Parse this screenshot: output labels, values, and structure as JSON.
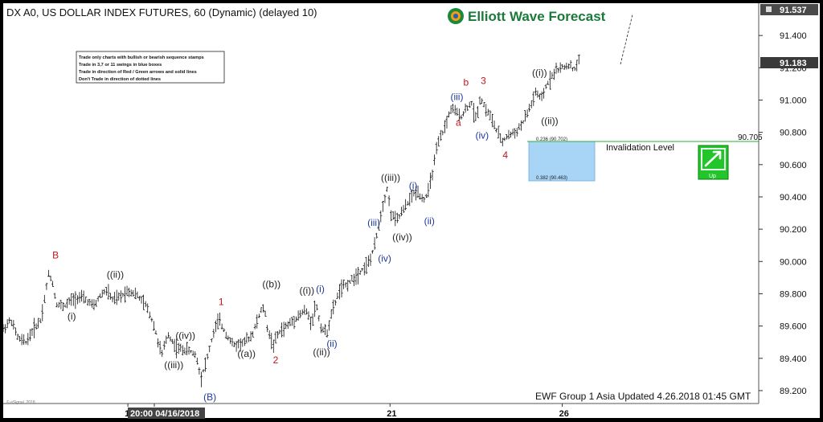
{
  "header": {
    "symbol_title": "DX A0, US DOLLAR INDEX FUTURES, 60 (Dynamic) (delayed 10)",
    "logo_text": "Elliott Wave Forecast"
  },
  "rules_box": {
    "lines": [
      "Trade only charts with bullish or bearish sequence stamps",
      "Trade in 3,7 or 11 swings in blue boxes",
      "Trade in direction of Red / Green arrows and solid lines",
      "Don't Trade in direction of dotted lines"
    ]
  },
  "footer": {
    "update_text": "EWF Group 1 Asia Updated 4.26.2018 01:45 GMT",
    "copyright": "© eSignal, 2018"
  },
  "invalidation": {
    "label": "Invalidation Level",
    "price_label": "90.705"
  },
  "blue_box": {
    "top_label": "0.236 (90.702)",
    "bottom_label": "0.382 (90.463)",
    "color": "#a8d4f5"
  },
  "up_stamp": {
    "label": "Up",
    "color": "#22c52a"
  },
  "price_badges": {
    "top": "91.537",
    "current": "91.183"
  },
  "chart_data": {
    "type": "ohlc",
    "yticks": [
      "91.400",
      "91.200",
      "91.000",
      "90.800",
      "90.600",
      "90.400",
      "90.200",
      "90.000",
      "89.800",
      "89.600",
      "89.400",
      "89.200"
    ],
    "ylim": [
      89.12,
      91.6
    ],
    "xticks": [
      "1",
      "20:00 04/16/2018",
      "21",
      "26"
    ],
    "xticks_pos": [
      0.165,
      0.2,
      0.512,
      0.74
    ],
    "wave_labels": [
      {
        "text": "B",
        "color": "#c0151b",
        "x": 0.065,
        "y": 90.02
      },
      {
        "text": "((ii))",
        "color": "#222222",
        "x": 0.137,
        "y": 89.9
      },
      {
        "text": "(i)",
        "color": "#222222",
        "x": 0.085,
        "y": 89.64
      },
      {
        "text": "((iv))",
        "color": "#222222",
        "x": 0.228,
        "y": 89.52
      },
      {
        "text": "((iii))",
        "color": "#222222",
        "x": 0.213,
        "y": 89.34
      },
      {
        "text": "(B)",
        "color": "#1d3a9c",
        "x": 0.265,
        "y": 89.14
      },
      {
        "text": "1",
        "color": "#c0151b",
        "x": 0.285,
        "y": 89.73
      },
      {
        "text": "((a))",
        "color": "#222222",
        "x": 0.31,
        "y": 89.41
      },
      {
        "text": "((b))",
        "color": "#222222",
        "x": 0.343,
        "y": 89.84
      },
      {
        "text": "2",
        "color": "#c0151b",
        "x": 0.357,
        "y": 89.37
      },
      {
        "text": "((i))",
        "color": "#222222",
        "x": 0.392,
        "y": 89.8
      },
      {
        "text": "(i)",
        "color": "#1d3a9c",
        "x": 0.414,
        "y": 89.81
      },
      {
        "text": "((ii))",
        "color": "#222222",
        "x": 0.41,
        "y": 89.42
      },
      {
        "text": "(ii)",
        "color": "#1d3a9c",
        "x": 0.428,
        "y": 89.47
      },
      {
        "text": "(iii)",
        "color": "#1d3a9c",
        "x": 0.482,
        "y": 90.22
      },
      {
        "text": "(iv)",
        "color": "#1d3a9c",
        "x": 0.496,
        "y": 90.0
      },
      {
        "text": "((iii))",
        "color": "#222222",
        "x": 0.5,
        "y": 90.5
      },
      {
        "text": "((iv))",
        "color": "#222222",
        "x": 0.515,
        "y": 90.13
      },
      {
        "text": "(i)",
        "color": "#1d3a9c",
        "x": 0.537,
        "y": 90.45
      },
      {
        "text": "(ii)",
        "color": "#1d3a9c",
        "x": 0.557,
        "y": 90.23
      },
      {
        "text": "(iii)",
        "color": "#1d3a9c",
        "x": 0.592,
        "y": 91.0
      },
      {
        "text": "a",
        "color": "#c0151b",
        "x": 0.599,
        "y": 90.84
      },
      {
        "text": "b",
        "color": "#c0151b",
        "x": 0.609,
        "y": 91.09
      },
      {
        "text": "3",
        "color": "#c0151b",
        "x": 0.632,
        "y": 91.1
      },
      {
        "text": "(iv)",
        "color": "#1d3a9c",
        "x": 0.625,
        "y": 90.76
      },
      {
        "text": "4",
        "color": "#c0151b",
        "x": 0.661,
        "y": 90.64
      },
      {
        "text": "((i))",
        "color": "#222222",
        "x": 0.7,
        "y": 91.15
      },
      {
        "text": "((ii))",
        "color": "#222222",
        "x": 0.712,
        "y": 90.85
      }
    ],
    "price_path": [
      [
        0.0,
        89.58
      ],
      [
        0.01,
        89.64
      ],
      [
        0.02,
        89.52
      ],
      [
        0.03,
        89.5
      ],
      [
        0.04,
        89.58
      ],
      [
        0.05,
        89.64
      ],
      [
        0.055,
        89.78
      ],
      [
        0.06,
        89.92
      ],
      [
        0.065,
        89.88
      ],
      [
        0.07,
        89.74
      ],
      [
        0.08,
        89.72
      ],
      [
        0.09,
        89.76
      ],
      [
        0.1,
        89.78
      ],
      [
        0.11,
        89.76
      ],
      [
        0.12,
        89.72
      ],
      [
        0.13,
        89.8
      ],
      [
        0.137,
        89.82
      ],
      [
        0.145,
        89.76
      ],
      [
        0.155,
        89.78
      ],
      [
        0.165,
        89.82
      ],
      [
        0.175,
        89.8
      ],
      [
        0.19,
        89.72
      ],
      [
        0.2,
        89.6
      ],
      [
        0.205,
        89.5
      ],
      [
        0.21,
        89.42
      ],
      [
        0.218,
        89.55
      ],
      [
        0.23,
        89.46
      ],
      [
        0.245,
        89.45
      ],
      [
        0.255,
        89.42
      ],
      [
        0.262,
        89.28
      ],
      [
        0.27,
        89.4
      ],
      [
        0.278,
        89.55
      ],
      [
        0.285,
        89.64
      ],
      [
        0.295,
        89.55
      ],
      [
        0.305,
        89.48
      ],
      [
        0.32,
        89.5
      ],
      [
        0.33,
        89.55
      ],
      [
        0.34,
        89.68
      ],
      [
        0.345,
        89.72
      ],
      [
        0.35,
        89.58
      ],
      [
        0.357,
        89.48
      ],
      [
        0.365,
        89.56
      ],
      [
        0.375,
        89.6
      ],
      [
        0.39,
        89.66
      ],
      [
        0.4,
        89.7
      ],
      [
        0.408,
        89.62
      ],
      [
        0.414,
        89.74
      ],
      [
        0.42,
        89.6
      ],
      [
        0.428,
        89.55
      ],
      [
        0.435,
        89.68
      ],
      [
        0.445,
        89.82
      ],
      [
        0.46,
        89.88
      ],
      [
        0.475,
        89.95
      ],
      [
        0.485,
        90.0
      ],
      [
        0.492,
        90.1
      ],
      [
        0.498,
        90.25
      ],
      [
        0.503,
        90.36
      ],
      [
        0.508,
        90.45
      ],
      [
        0.513,
        90.3
      ],
      [
        0.52,
        90.25
      ],
      [
        0.53,
        90.32
      ],
      [
        0.54,
        90.4
      ],
      [
        0.548,
        90.44
      ],
      [
        0.556,
        90.38
      ],
      [
        0.562,
        90.42
      ],
      [
        0.568,
        90.55
      ],
      [
        0.575,
        90.72
      ],
      [
        0.582,
        90.8
      ],
      [
        0.588,
        90.88
      ],
      [
        0.593,
        90.95
      ],
      [
        0.6,
        90.92
      ],
      [
        0.607,
        90.9
      ],
      [
        0.613,
        90.95
      ],
      [
        0.62,
        90.98
      ],
      [
        0.625,
        90.88
      ],
      [
        0.632,
        91.02
      ],
      [
        0.638,
        90.95
      ],
      [
        0.645,
        90.9
      ],
      [
        0.652,
        90.82
      ],
      [
        0.66,
        90.74
      ],
      [
        0.668,
        90.78
      ],
      [
        0.678,
        90.8
      ],
      [
        0.688,
        90.86
      ],
      [
        0.698,
        90.96
      ],
      [
        0.705,
        91.05
      ],
      [
        0.712,
        91.0
      ],
      [
        0.72,
        91.1
      ],
      [
        0.73,
        91.18
      ],
      [
        0.74,
        91.2
      ],
      [
        0.75,
        91.22
      ],
      [
        0.755,
        91.18
      ],
      [
        0.762,
        91.24
      ]
    ]
  }
}
